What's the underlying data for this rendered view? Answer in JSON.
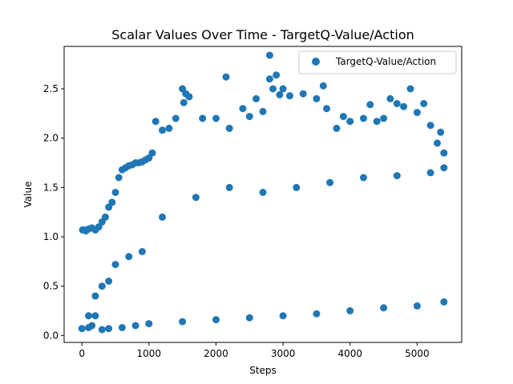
{
  "chart_data": {
    "type": "scatter",
    "title": "Scalar Values Over Time - TargetQ-Value/Action",
    "xlabel": "Steps",
    "ylabel": "Value",
    "xlim": [
      -265,
      5665
    ],
    "ylim": [
      -0.07,
      2.93
    ],
    "xticks": [
      0,
      1000,
      2000,
      3000,
      4000,
      5000
    ],
    "yticks": [
      0.0,
      0.5,
      1.0,
      1.5,
      2.0,
      2.5
    ],
    "xtick_labels": [
      "0",
      "1000",
      "2000",
      "3000",
      "4000",
      "5000"
    ],
    "ytick_labels": [
      "0.0",
      "0.5",
      "1.0",
      "1.5",
      "2.0",
      "2.5"
    ],
    "grid": false,
    "legend_position": "top-right",
    "series": [
      {
        "name": "TargetQ-Value/Action",
        "color": "#1f77b4",
        "x": [
          0,
          10,
          30,
          60,
          100,
          150,
          200,
          250,
          300,
          350,
          400,
          450,
          500,
          550,
          600,
          650,
          700,
          750,
          800,
          850,
          900,
          950,
          1000,
          1050,
          1100,
          1200,
          1300,
          1400,
          1500,
          1520,
          1550,
          1600,
          1800,
          2000,
          2150,
          2200,
          2400,
          2500,
          2600,
          2700,
          2800,
          2800,
          2850,
          2900,
          2950,
          3000,
          3100,
          3300,
          3500,
          3600,
          3650,
          3800,
          3900,
          4000,
          4200,
          4300,
          4400,
          4500,
          4600,
          4700,
          4800,
          4900,
          5000,
          5100,
          5200,
          5300,
          5350,
          5400,
          100,
          150,
          200,
          300,
          400,
          600,
          800,
          1000,
          1500,
          2000,
          2500,
          3000,
          3500,
          4000,
          4500,
          5000,
          5400,
          100,
          200,
          300,
          400,
          500,
          700,
          900,
          1200,
          1700,
          2200,
          2700,
          3200,
          3700,
          4200,
          4700,
          5200,
          5400
        ],
        "y": [
          0.07,
          1.07,
          1.07,
          1.06,
          1.08,
          1.09,
          1.07,
          1.1,
          1.15,
          1.2,
          1.3,
          1.35,
          1.45,
          1.6,
          1.68,
          1.7,
          1.72,
          1.73,
          1.75,
          1.75,
          1.76,
          1.78,
          1.8,
          1.85,
          2.17,
          2.08,
          2.1,
          2.2,
          2.5,
          2.36,
          2.45,
          2.42,
          2.2,
          2.2,
          2.62,
          2.1,
          2.3,
          2.22,
          2.4,
          2.27,
          2.84,
          2.6,
          2.5,
          2.64,
          2.44,
          2.5,
          2.43,
          2.45,
          2.4,
          2.53,
          2.3,
          2.1,
          2.22,
          2.17,
          2.2,
          2.34,
          2.17,
          2.2,
          2.4,
          2.35,
          2.32,
          2.5,
          2.26,
          2.35,
          2.13,
          1.95,
          2.06,
          1.85,
          0.08,
          0.1,
          0.2,
          0.06,
          0.07,
          0.08,
          0.1,
          0.12,
          0.14,
          0.16,
          0.18,
          0.2,
          0.22,
          0.25,
          0.28,
          0.3,
          0.34,
          0.2,
          0.4,
          0.5,
          0.55,
          0.72,
          0.8,
          0.85,
          1.2,
          1.4,
          1.5,
          1.45,
          1.5,
          1.55,
          1.6,
          1.62,
          1.65,
          1.7
        ]
      }
    ]
  }
}
